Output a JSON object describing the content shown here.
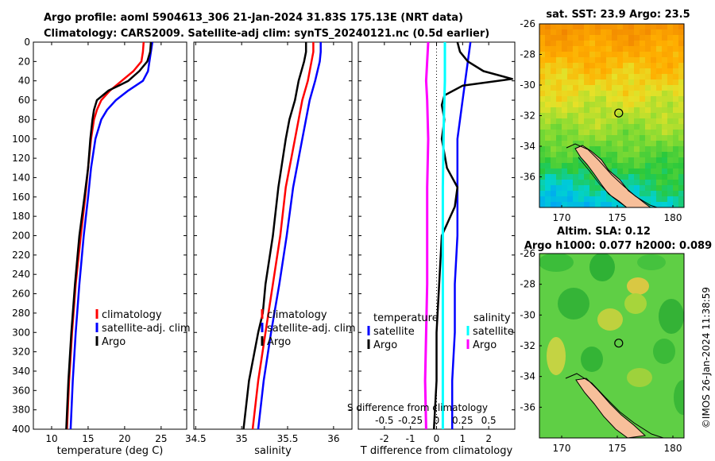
{
  "header": {
    "line1": "Argo profile: aoml 5904613_306 21-Jan-2024 31.83S 175.13E (NRT data)",
    "line2": "Climatology: CARS2009. Satellite-adj clim: synTS_20240121.nc (0.5d earlier)"
  },
  "colors": {
    "climatology": "#ff0000",
    "satellite": "#0000ff",
    "argo": "#000000",
    "satellite_s": "#00ffff",
    "argo_s": "#ff00ff"
  },
  "chart_data": [
    {
      "type": "line",
      "name": "temperature-profile",
      "xlabel": "temperature (deg C)",
      "xlim": [
        7.5,
        28.5
      ],
      "ylim": [
        400,
        0
      ],
      "xticks": [
        10,
        15,
        20,
        25
      ],
      "yticks": [
        0,
        20,
        40,
        60,
        80,
        100,
        120,
        140,
        160,
        180,
        200,
        220,
        240,
        260,
        280,
        300,
        320,
        340,
        360,
        380,
        400
      ],
      "legend": [
        "climatology",
        "satellite-adj. clim",
        "Argo"
      ],
      "series": [
        {
          "name": "climatology",
          "color": "#ff0000",
          "depth": [
            0,
            10,
            20,
            30,
            40,
            50,
            60,
            70,
            80,
            100,
            130,
            160,
            200,
            250,
            300,
            350,
            400
          ],
          "values": [
            22.6,
            22.5,
            22.3,
            21.2,
            19.6,
            18.0,
            16.8,
            16.2,
            15.8,
            15.4,
            15.0,
            14.6,
            14.0,
            13.3,
            12.8,
            12.4,
            12.1
          ]
        },
        {
          "name": "satellite-adj. clim",
          "color": "#0000ff",
          "depth": [
            0,
            20,
            30,
            40,
            50,
            60,
            70,
            80,
            100,
            130,
            160,
            200,
            250,
            300,
            350,
            400
          ],
          "values": [
            23.8,
            23.4,
            23.2,
            22.5,
            20.5,
            18.8,
            17.6,
            16.8,
            16.0,
            15.4,
            15.0,
            14.4,
            13.8,
            13.3,
            12.9,
            12.6
          ]
        },
        {
          "name": "Argo",
          "color": "#000000",
          "depth": [
            0,
            10,
            20,
            30,
            40,
            45,
            50,
            55,
            60,
            70,
            80,
            100,
            130,
            160,
            200,
            250,
            300,
            350,
            400
          ],
          "values": [
            23.6,
            23.5,
            23.1,
            22.0,
            20.5,
            19.2,
            17.8,
            17.0,
            16.2,
            15.8,
            15.6,
            15.3,
            15.0,
            14.5,
            13.8,
            13.2,
            12.7,
            12.3,
            12.0
          ]
        }
      ]
    },
    {
      "type": "line",
      "name": "salinity-profile",
      "xlabel": "salinity",
      "xlim": [
        34.48,
        36.2
      ],
      "ylim": [
        400,
        0
      ],
      "xticks": [
        34.5,
        35,
        35.5,
        36
      ],
      "xticklabels": [
        "34.5",
        "35",
        "35.5",
        "36"
      ],
      "legend": [
        "climatology",
        "satellite-adj. clim",
        "Argo"
      ],
      "series": [
        {
          "name": "climatology",
          "color": "#ff0000",
          "depth": [
            0,
            10,
            20,
            40,
            60,
            100,
            150,
            200,
            250,
            300,
            350,
            400
          ],
          "values": [
            35.78,
            35.78,
            35.76,
            35.72,
            35.66,
            35.58,
            35.48,
            35.42,
            35.34,
            35.26,
            35.18,
            35.12
          ]
        },
        {
          "name": "satellite-adj. clim",
          "color": "#0000ff",
          "depth": [
            0,
            10,
            20,
            40,
            60,
            100,
            150,
            200,
            250,
            300,
            350,
            400
          ],
          "values": [
            35.86,
            35.86,
            35.85,
            35.8,
            35.74,
            35.66,
            35.56,
            35.49,
            35.41,
            35.32,
            35.24,
            35.18
          ]
        },
        {
          "name": "Argo",
          "color": "#000000",
          "depth": [
            0,
            10,
            20,
            40,
            60,
            80,
            100,
            150,
            200,
            250,
            280,
            300,
            350,
            400
          ],
          "values": [
            35.7,
            35.7,
            35.68,
            35.62,
            35.58,
            35.52,
            35.48,
            35.4,
            35.34,
            35.26,
            35.23,
            35.18,
            35.08,
            35.02
          ]
        }
      ]
    },
    {
      "type": "line",
      "name": "difference-profile",
      "xlabel": "T difference from climatology",
      "xlabel2": "S difference from climatology",
      "xlim": [
        -3,
        3
      ],
      "ylim": [
        400,
        0
      ],
      "xticks": [
        -2,
        -1,
        0,
        1,
        2
      ],
      "sticks": [
        -0.5,
        -0.25,
        0,
        0.25,
        0.5
      ],
      "sticklabels": [
        "-0.5",
        "-0.25",
        "0",
        "0.25",
        "0.5"
      ],
      "legend_t": {
        "title": "temperature",
        "items": [
          "satellite",
          "Argo"
        ]
      },
      "legend_s": {
        "title": "salinity",
        "items": [
          "satellite",
          "Argo"
        ]
      },
      "series": [
        {
          "name": "T satellite",
          "color": "#0000ff",
          "depth": [
            0,
            20,
            40,
            60,
            100,
            150,
            200,
            250,
            300,
            350,
            400
          ],
          "values": [
            1.3,
            1.2,
            1.1,
            1.0,
            0.8,
            0.8,
            0.8,
            0.7,
            0.7,
            0.6,
            0.6
          ]
        },
        {
          "name": "T Argo",
          "color": "#000000",
          "depth": [
            0,
            10,
            20,
            30,
            38,
            45,
            55,
            65,
            80,
            100,
            130,
            150,
            170,
            200,
            250,
            300,
            350,
            400
          ],
          "values": [
            0.8,
            0.9,
            1.2,
            1.8,
            2.9,
            1.0,
            0.3,
            0.2,
            0.3,
            0.2,
            0.4,
            0.8,
            0.7,
            0.2,
            0.1,
            0.0,
            0.0,
            -0.1
          ]
        },
        {
          "name": "S satellite",
          "color": "#00ffff",
          "depth": [
            0,
            40,
            80,
            150,
            250,
            400
          ],
          "values": [
            0.08,
            0.08,
            0.07,
            0.06,
            0.06,
            0.06
          ]
        },
        {
          "name": "S Argo",
          "color": "#ff00ff",
          "depth": [
            0,
            20,
            40,
            60,
            100,
            150,
            200,
            250,
            300,
            350,
            400
          ],
          "values": [
            -0.08,
            -0.09,
            -0.1,
            -0.09,
            -0.08,
            -0.09,
            -0.09,
            -0.09,
            -0.1,
            -0.11,
            -0.1
          ]
        }
      ]
    }
  ],
  "maps": {
    "sst": {
      "title": "sat. SST: 23.9  Argo: 23.5",
      "yticks": [
        -26,
        -28,
        -30,
        -32,
        -34,
        -36
      ],
      "xticks": [
        170,
        175,
        180
      ],
      "lonlim": [
        168,
        181
      ],
      "latlim": [
        -38,
        -26
      ]
    },
    "sla": {
      "title1": "Altim. SLA: 0.12",
      "title2": "Argo h1000: 0.077 h2000: 0.089",
      "yticks": [
        -26,
        -28,
        -30,
        -32,
        -34,
        -36
      ],
      "xticks": [
        170,
        175,
        180
      ],
      "lonlim": [
        168,
        181
      ],
      "latlim": [
        -38,
        -26
      ]
    },
    "float_position": {
      "lon": 175.13,
      "lat": -31.83
    }
  },
  "credit": "©IMOS 26-Jan-2024 11:38:59"
}
